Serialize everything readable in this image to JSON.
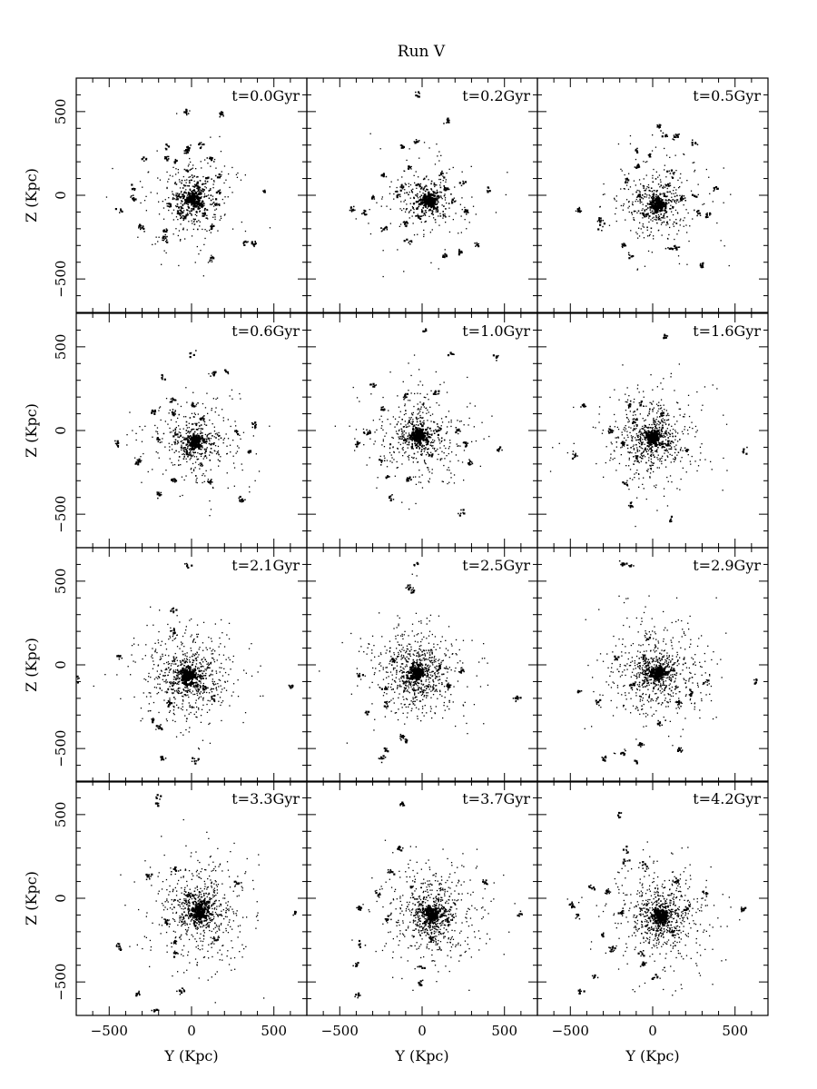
{
  "title": "Run V",
  "chart_data": {
    "type": "scatter",
    "title": "Run V",
    "xlabel": "Y (Kpc)",
    "ylabel": "Z (Kpc)",
    "xlim": [
      -700,
      700
    ],
    "ylim": [
      -700,
      700
    ],
    "xticks": [
      -500,
      0,
      500
    ],
    "yticks": [
      -500,
      0,
      500
    ],
    "grid": false,
    "layout": {
      "rows": 4,
      "cols": 3
    },
    "panels": [
      {
        "label": "t=0.0Gyr",
        "center": [
          10,
          -20
        ],
        "satellites": [
          [
            -20,
            280
          ],
          [
            -150,
            290
          ],
          [
            -150,
            220
          ],
          [
            -100,
            200
          ],
          [
            -30,
            260
          ],
          [
            -20,
            150
          ],
          [
            60,
            300
          ],
          [
            110,
            220
          ],
          [
            170,
            120
          ],
          [
            -280,
            220
          ],
          [
            -350,
            40
          ],
          [
            -350,
            -20
          ],
          [
            -300,
            -190
          ],
          [
            -160,
            -220
          ],
          [
            -160,
            -260
          ],
          [
            -70,
            -80
          ],
          [
            -40,
            -130
          ],
          [
            -130,
            -60
          ],
          [
            -80,
            -10
          ],
          [
            60,
            -60
          ],
          [
            80,
            -110
          ],
          [
            130,
            -190
          ],
          [
            150,
            -50
          ],
          [
            170,
            20
          ],
          [
            100,
            100
          ],
          [
            -450,
            -90
          ],
          [
            120,
            -380
          ],
          [
            330,
            -280
          ],
          [
            380,
            -290
          ],
          [
            440,
            30
          ],
          [
            -30,
            500
          ],
          [
            180,
            480
          ],
          [
            -70,
            -110
          ],
          [
            30,
            60
          ]
        ],
        "field": 260
      },
      {
        "label": "t=0.2Gyr",
        "center": [
          40,
          -30
        ],
        "satellites": [
          [
            -20,
            600
          ],
          [
            150,
            440
          ],
          [
            -40,
            320
          ],
          [
            -120,
            290
          ],
          [
            -80,
            170
          ],
          [
            -20,
            60
          ],
          [
            -120,
            50
          ],
          [
            -150,
            0
          ],
          [
            -230,
            120
          ],
          [
            -300,
            -20
          ],
          [
            -350,
            -100
          ],
          [
            -230,
            -200
          ],
          [
            -100,
            -170
          ],
          [
            -80,
            -280
          ],
          [
            -20,
            -130
          ],
          [
            80,
            -80
          ],
          [
            120,
            120
          ],
          [
            150,
            40
          ],
          [
            190,
            -30
          ],
          [
            240,
            60
          ],
          [
            270,
            -100
          ],
          [
            330,
            -290
          ],
          [
            230,
            -340
          ],
          [
            140,
            -360
          ],
          [
            400,
            30
          ],
          [
            -420,
            -90
          ]
        ],
        "field": 220
      },
      {
        "label": "t=0.5Gyr",
        "center": [
          30,
          -60
        ],
        "satellites": [
          [
            -160,
            90
          ],
          [
            -90,
            170
          ],
          [
            -20,
            240
          ],
          [
            -100,
            270
          ],
          [
            40,
            410
          ],
          [
            80,
            360
          ],
          [
            140,
            350
          ],
          [
            250,
            310
          ],
          [
            120,
            130
          ],
          [
            100,
            60
          ],
          [
            180,
            -20
          ],
          [
            250,
            0
          ],
          [
            -450,
            -90
          ],
          [
            -320,
            -150
          ],
          [
            -310,
            -180
          ],
          [
            -180,
            -300
          ],
          [
            -130,
            -360
          ],
          [
            100,
            -320
          ],
          [
            140,
            -310
          ],
          [
            280,
            -110
          ],
          [
            340,
            -120
          ],
          [
            380,
            40
          ],
          [
            300,
            -420
          ],
          [
            -40,
            -120
          ],
          [
            -80,
            -10
          ]
        ],
        "field": 300
      },
      {
        "label": "t=0.6Gyr",
        "center": [
          20,
          -70
        ],
        "satellites": [
          [
            0,
            460
          ],
          [
            -180,
            310
          ],
          [
            -120,
            180
          ],
          [
            -230,
            110
          ],
          [
            -110,
            100
          ],
          [
            10,
            150
          ],
          [
            70,
            70
          ],
          [
            130,
            340
          ],
          [
            220,
            350
          ],
          [
            270,
            -10
          ],
          [
            380,
            30
          ],
          [
            350,
            -130
          ],
          [
            -100,
            -20
          ],
          [
            -200,
            -60
          ],
          [
            -320,
            -180
          ],
          [
            -330,
            -200
          ],
          [
            -200,
            -380
          ],
          [
            -110,
            -300
          ],
          [
            110,
            -310
          ],
          [
            300,
            -420
          ],
          [
            -450,
            -80
          ],
          [
            -20,
            -130
          ]
        ],
        "field": 320
      },
      {
        "label": "t=1.0Gyr",
        "center": [
          -20,
          -30
        ],
        "satellites": [
          [
            20,
            600
          ],
          [
            180,
            460
          ],
          [
            450,
            440
          ],
          [
            -300,
            270
          ],
          [
            -240,
            130
          ],
          [
            -100,
            200
          ],
          [
            80,
            230
          ],
          [
            -330,
            -10
          ],
          [
            -390,
            -80
          ],
          [
            -250,
            -190
          ],
          [
            -210,
            -280
          ],
          [
            -190,
            -400
          ],
          [
            -80,
            -290
          ],
          [
            100,
            -10
          ],
          [
            220,
            0
          ],
          [
            260,
            -80
          ],
          [
            470,
            -110
          ],
          [
            290,
            -190
          ],
          [
            240,
            -490
          ],
          [
            -120,
            -50
          ],
          [
            60,
            -150
          ]
        ],
        "field": 420
      },
      {
        "label": "t=1.6Gyr",
        "center": [
          0,
          -40
        ],
        "satellites": [
          [
            80,
            560
          ],
          [
            -420,
            150
          ],
          [
            -140,
            150
          ],
          [
            -70,
            160
          ],
          [
            -110,
            50
          ],
          [
            -260,
            0
          ],
          [
            -180,
            -80
          ],
          [
            -100,
            -170
          ],
          [
            -470,
            -150
          ],
          [
            -160,
            -330
          ],
          [
            -130,
            -450
          ],
          [
            110,
            -530
          ],
          [
            210,
            -120
          ],
          [
            560,
            -120
          ],
          [
            100,
            -80
          ],
          [
            60,
            100
          ]
        ],
        "field": 520
      },
      {
        "label": "t=2.1Gyr",
        "center": [
          -20,
          -70
        ],
        "satellites": [
          [
            -20,
            600
          ],
          [
            -110,
            330
          ],
          [
            -110,
            200
          ],
          [
            -440,
            50
          ],
          [
            -690,
            -90
          ],
          [
            -140,
            -230
          ],
          [
            -240,
            -330
          ],
          [
            -190,
            -370
          ],
          [
            -180,
            -560
          ],
          [
            20,
            -570
          ],
          [
            80,
            -140
          ],
          [
            130,
            -200
          ],
          [
            610,
            -130
          ],
          [
            -50,
            -40
          ]
        ],
        "field": 600
      },
      {
        "label": "t=2.5Gyr",
        "center": [
          -30,
          -50
        ],
        "satellites": [
          [
            -80,
            460
          ],
          [
            -60,
            440
          ],
          [
            -30,
            600
          ],
          [
            -380,
            -60
          ],
          [
            -220,
            -140
          ],
          [
            -220,
            -240
          ],
          [
            -340,
            -280
          ],
          [
            -220,
            -510
          ],
          [
            -240,
            -560
          ],
          [
            -120,
            -430
          ],
          [
            -100,
            -460
          ],
          [
            100,
            -10
          ],
          [
            160,
            -130
          ],
          [
            240,
            -40
          ],
          [
            580,
            -200
          ],
          [
            -170,
            20
          ]
        ],
        "field": 600
      },
      {
        "label": "t=2.9Gyr",
        "center": [
          30,
          -50
        ],
        "satellites": [
          [
            -180,
            600
          ],
          [
            -140,
            590
          ],
          [
            -220,
            40
          ],
          [
            -50,
            40
          ],
          [
            -30,
            150
          ],
          [
            -120,
            -120
          ],
          [
            -440,
            -160
          ],
          [
            -330,
            -230
          ],
          [
            -290,
            -560
          ],
          [
            -180,
            -530
          ],
          [
            -100,
            -570
          ],
          [
            -70,
            -470
          ],
          [
            40,
            -360
          ],
          [
            160,
            -230
          ],
          [
            230,
            -170
          ],
          [
            320,
            -110
          ],
          [
            630,
            -100
          ],
          [
            160,
            -510
          ]
        ],
        "field": 600
      },
      {
        "label": "t=3.3Gyr",
        "center": [
          50,
          -80
        ],
        "satellites": [
          [
            -210,
            600
          ],
          [
            -210,
            560
          ],
          [
            -260,
            130
          ],
          [
            -100,
            170
          ],
          [
            -20,
            20
          ],
          [
            -150,
            -140
          ],
          [
            -100,
            -260
          ],
          [
            -100,
            -330
          ],
          [
            -440,
            -290
          ],
          [
            -320,
            -570
          ],
          [
            -60,
            -550
          ],
          [
            -220,
            -670
          ],
          [
            90,
            -20
          ],
          [
            150,
            -240
          ],
          [
            620,
            -90
          ],
          [
            280,
            90
          ]
        ],
        "field": 600
      },
      {
        "label": "t=3.7Gyr",
        "center": [
          60,
          -100
        ],
        "satellites": [
          [
            -120,
            560
          ],
          [
            -140,
            300
          ],
          [
            -190,
            160
          ],
          [
            -270,
            30
          ],
          [
            -380,
            -60
          ],
          [
            -210,
            -130
          ],
          [
            -380,
            -280
          ],
          [
            -400,
            -400
          ],
          [
            -380,
            -580
          ],
          [
            -10,
            -400
          ],
          [
            -10,
            -510
          ],
          [
            60,
            -240
          ],
          [
            160,
            -140
          ],
          [
            380,
            100
          ],
          [
            600,
            -90
          ],
          [
            -60,
            70
          ]
        ],
        "field": 600
      },
      {
        "label": "t=4.2Gyr",
        "center": [
          50,
          -110
        ],
        "satellites": [
          [
            -200,
            500
          ],
          [
            -160,
            290
          ],
          [
            -170,
            220
          ],
          [
            -50,
            200
          ],
          [
            -370,
            60
          ],
          [
            -280,
            40
          ],
          [
            -190,
            -80
          ],
          [
            -490,
            -40
          ],
          [
            -450,
            -110
          ],
          [
            -300,
            -220
          ],
          [
            -250,
            -300
          ],
          [
            -70,
            -330
          ],
          [
            -50,
            -390
          ],
          [
            -350,
            -470
          ],
          [
            -440,
            -560
          ],
          [
            10,
            -470
          ],
          [
            120,
            -200
          ],
          [
            210,
            -60
          ],
          [
            320,
            30
          ],
          [
            550,
            -70
          ],
          [
            150,
            100
          ]
        ],
        "field": 600
      }
    ]
  }
}
